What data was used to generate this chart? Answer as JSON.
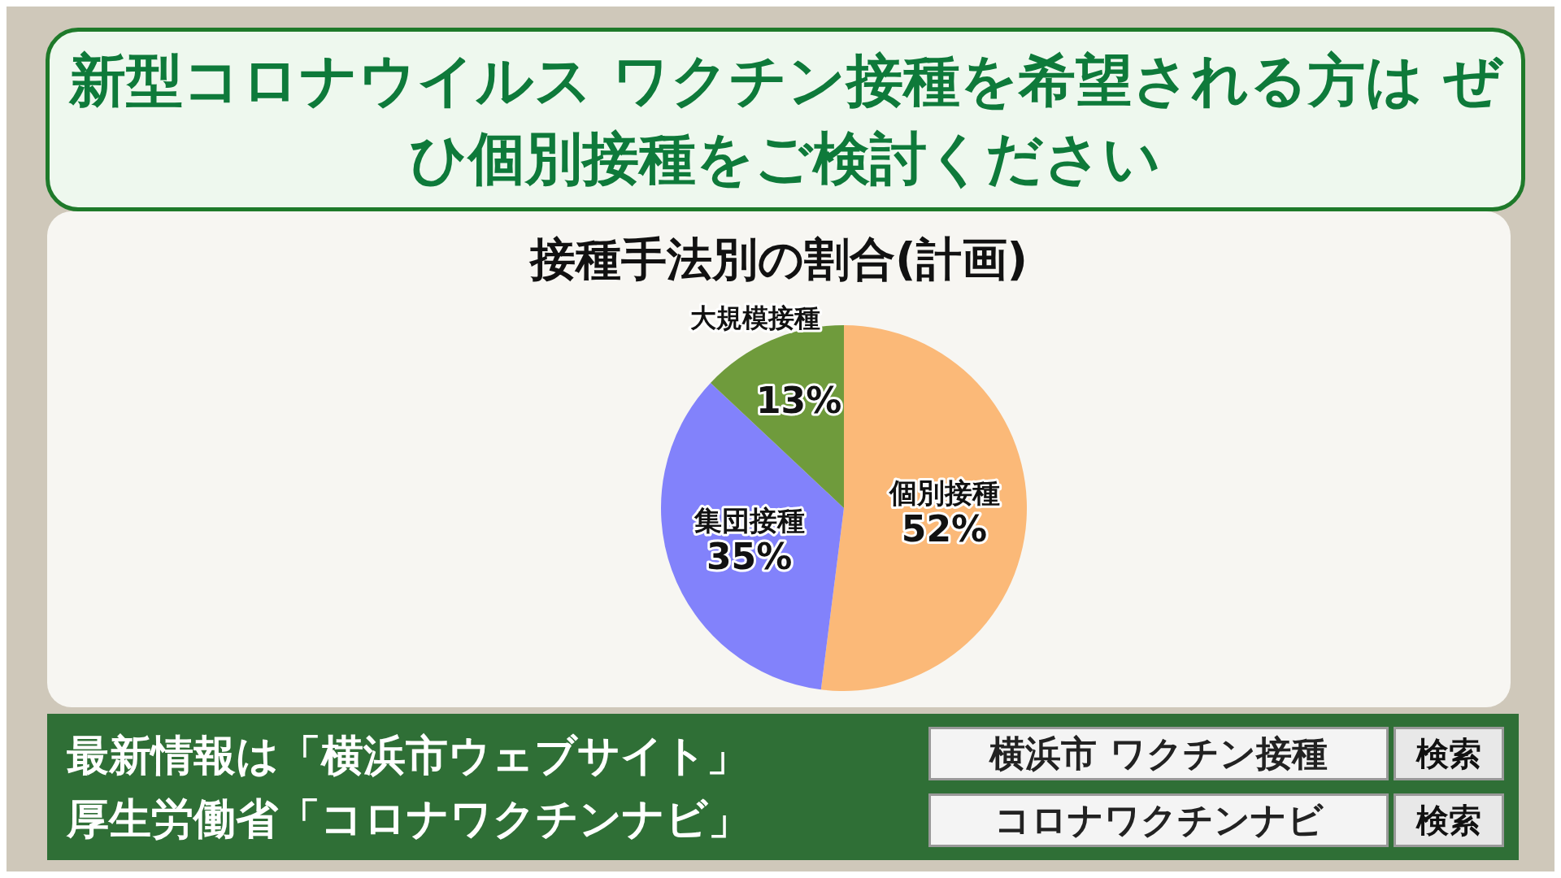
{
  "chart_data": {
    "type": "pie",
    "title": "新型コロナウイルス ワクチン接種を希望される方は ぜひ個別接種をご検討ください",
    "subtitle": "接種手法別の割合(計画)",
    "categories": [
      "個別接種",
      "集団接種",
      "大規模接種"
    ],
    "values": [
      52,
      35,
      13
    ],
    "colors": [
      "#fbb978",
      "#8282fb",
      "#6f9b3c"
    ],
    "value_labels": [
      "52%",
      "35%",
      "13%"
    ],
    "legend": false,
    "annotations": [
      "最新情報は「横浜市ウェブサイト」",
      "厚生労働省「コロナワクチンナビ」",
      "横浜市 ワクチン接種",
      "検索",
      "コロナワクチンナビ",
      "検索"
    ]
  }
}
